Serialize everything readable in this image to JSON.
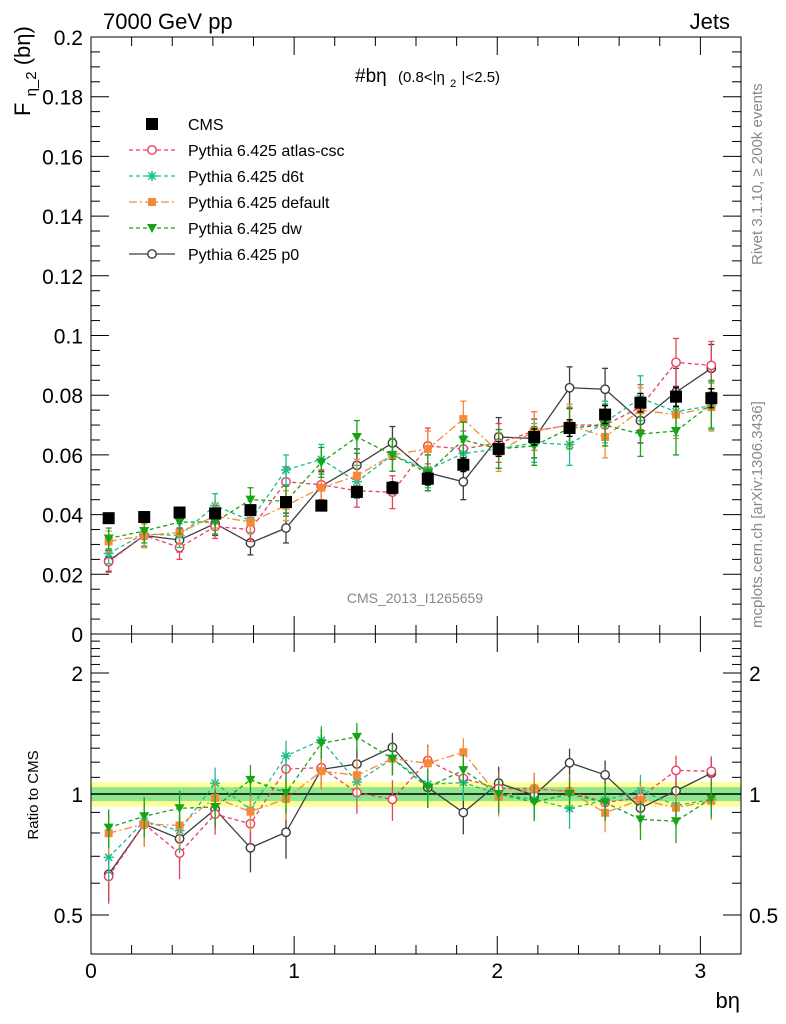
{
  "header": {
    "left": "7000 GeV pp",
    "right": "Jets"
  },
  "side_text": {
    "top": "Rivet 3.1.10, ≥ 200k events",
    "bottom": "mcplots.cern.ch [arXiv:1306.3436]"
  },
  "watermark": "CMS_2013_I1265659",
  "chart_data": [
    {
      "type": "scatter",
      "title": "#bη (0.8<|η₂|<2.5)",
      "title_main": "#bη",
      "title_sub": "(0.8<|η",
      "title_sub2": "2",
      "title_sub3": "|<2.5)",
      "ylabel": "F",
      "ylabel_sub": "η_2",
      "ylabel_tail": "(bη)",
      "xlim": [
        0,
        3.2
      ],
      "ylim": [
        0,
        0.2
      ],
      "yticks": [
        {
          "v": 0.02,
          "label": "0.02"
        },
        {
          "v": 0.04,
          "label": "0.04"
        },
        {
          "v": 0.06,
          "label": "0.06"
        },
        {
          "v": 0.08,
          "label": "0.08"
        },
        {
          "v": 0.1,
          "label": "0.1"
        },
        {
          "v": 0.12,
          "label": "0.12"
        },
        {
          "v": 0.14,
          "label": "0.14"
        },
        {
          "v": 0.16,
          "label": "0.16"
        },
        {
          "v": 0.18,
          "label": "0.18"
        },
        {
          "v": 0.2,
          "label": "0.2"
        }
      ],
      "x": [
        0.087,
        0.262,
        0.436,
        0.611,
        0.785,
        0.96,
        1.134,
        1.309,
        1.484,
        1.658,
        1.833,
        2.007,
        2.182,
        2.356,
        2.531,
        2.705,
        2.88,
        3.054
      ],
      "series": [
        {
          "name": "CMS",
          "color": "#000000",
          "marker": "square",
          "values": [
            0.0388,
            0.0392,
            0.0407,
            0.0404,
            0.0415,
            0.0442,
            0.043,
            0.0476,
            0.049,
            0.052,
            0.0567,
            0.062,
            0.066,
            0.069,
            0.0735,
            0.0775,
            0.0795,
            0.079
          ],
          "errors": [
            0.0015,
            0.0015,
            0.0015,
            0.0015,
            0.0015,
            0.0017,
            0.0017,
            0.0019,
            0.002,
            0.0021,
            0.0023,
            0.0025,
            0.0027,
            0.0028,
            0.003,
            0.0031,
            0.0032,
            0.0032
          ]
        },
        {
          "name": "Pythia 6.425 atlas-csc",
          "color": "#e8415e",
          "marker": "open-circle",
          "dash": "4,3",
          "values": [
            0.0242,
            0.033,
            0.029,
            0.036,
            0.035,
            0.051,
            0.05,
            0.048,
            0.0475,
            0.063,
            0.062,
            0.064,
            0.068,
            0.07,
            0.07,
            0.076,
            0.091,
            0.09
          ],
          "errors": [
            0.0035,
            0.004,
            0.004,
            0.004,
            0.004,
            0.005,
            0.005,
            0.0055,
            0.0055,
            0.006,
            0.006,
            0.0065,
            0.0065,
            0.007,
            0.007,
            0.0075,
            0.008,
            0.008
          ]
        },
        {
          "name": "Pythia 6.425 d6t",
          "color": "#1bbd8f",
          "marker": "star",
          "dash": "4,3",
          "values": [
            0.027,
            0.0335,
            0.033,
            0.043,
            0.038,
            0.055,
            0.0585,
            0.051,
            0.06,
            0.055,
            0.0605,
            0.062,
            0.064,
            0.0635,
            0.071,
            0.079,
            0.0745,
            0.0765
          ],
          "errors": [
            0.0035,
            0.004,
            0.004,
            0.004,
            0.004,
            0.005,
            0.005,
            0.0055,
            0.0055,
            0.006,
            0.006,
            0.0065,
            0.0065,
            0.007,
            0.007,
            0.0075,
            0.008,
            0.008
          ]
        },
        {
          "name": "Pythia 6.425 default",
          "color": "#f5893a",
          "marker": "filled-square",
          "dash": "8,3,2,3",
          "values": [
            0.031,
            0.033,
            0.034,
            0.0395,
            0.0375,
            0.043,
            0.049,
            0.053,
            0.06,
            0.062,
            0.072,
            0.061,
            0.068,
            0.07,
            0.066,
            0.075,
            0.0735,
            0.076
          ],
          "errors": [
            0.0035,
            0.004,
            0.004,
            0.004,
            0.004,
            0.005,
            0.005,
            0.0055,
            0.0055,
            0.006,
            0.006,
            0.0065,
            0.0065,
            0.007,
            0.007,
            0.0075,
            0.008,
            0.008
          ]
        },
        {
          "name": "Pythia 6.425 dw",
          "color": "#19a319",
          "marker": "triangle-down",
          "dash": "4,3",
          "values": [
            0.032,
            0.0345,
            0.0375,
            0.0375,
            0.045,
            0.0445,
            0.0575,
            0.066,
            0.06,
            0.054,
            0.065,
            0.062,
            0.063,
            0.069,
            0.07,
            0.067,
            0.068,
            0.077
          ],
          "errors": [
            0.0035,
            0.004,
            0.004,
            0.004,
            0.004,
            0.005,
            0.005,
            0.0055,
            0.0055,
            0.006,
            0.006,
            0.0065,
            0.0065,
            0.007,
            0.007,
            0.0075,
            0.008,
            0.008
          ]
        },
        {
          "name": "Pythia 6.425 p0",
          "color": "#3d3d3d",
          "marker": "open-circle",
          "values": [
            0.0245,
            0.033,
            0.0315,
            0.037,
            0.0305,
            0.0355,
            0.0495,
            0.0565,
            0.064,
            0.054,
            0.051,
            0.066,
            0.0655,
            0.0825,
            0.082,
            0.0715,
            0.081,
            0.089
          ],
          "errors": [
            0.0035,
            0.004,
            0.004,
            0.004,
            0.004,
            0.005,
            0.005,
            0.0055,
            0.0055,
            0.006,
            0.006,
            0.0065,
            0.0065,
            0.007,
            0.007,
            0.0075,
            0.008,
            0.008
          ]
        }
      ]
    },
    {
      "type": "scatter",
      "title": "Ratio to CMS",
      "xlabel": "bη",
      "ylabel": "Ratio to CMS",
      "yscale": "log",
      "xlim": [
        0,
        3.2
      ],
      "ylim": [
        0.4,
        2.5
      ],
      "yticks": [
        {
          "v": 0.5,
          "label": "0.5"
        },
        {
          "v": 1,
          "label": "1"
        },
        {
          "v": 2,
          "label": "2"
        }
      ],
      "xticks": [
        {
          "v": 0,
          "label": "0"
        },
        {
          "v": 1,
          "label": "1"
        },
        {
          "v": 2,
          "label": "2"
        },
        {
          "v": 3,
          "label": "3"
        }
      ],
      "reference": 1,
      "band_inner": 0.04,
      "band_outer": 0.07
    }
  ]
}
